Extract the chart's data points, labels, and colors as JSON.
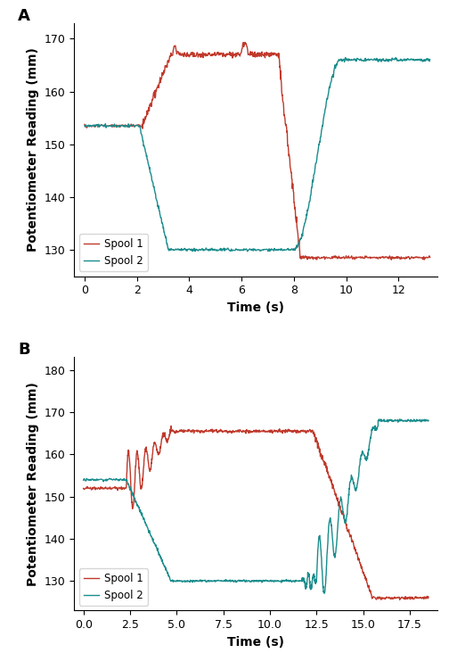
{
  "panel_A": {
    "label": "A",
    "spool1_color": "#C0392B",
    "spool2_color": "#1A8C8C",
    "ylabel": "Potentiometer Reading (mm)",
    "xlabel": "Time (s)",
    "legend_labels": [
      "Spool 1",
      "Spool 2"
    ],
    "xlim": [
      -0.4,
      13.5
    ],
    "ylim": [
      125,
      173
    ],
    "xticks": [
      0,
      2,
      4,
      6,
      8,
      10,
      12
    ],
    "yticks": [
      130,
      140,
      150,
      160,
      170
    ]
  },
  "panel_B": {
    "label": "B",
    "spool1_color": "#C0392B",
    "spool2_color": "#1A8C8C",
    "ylabel": "Potentiometer Reading (mm)",
    "xlabel": "Time (s)",
    "legend_labels": [
      "Spool 1",
      "Spool 2"
    ],
    "xlim": [
      -0.5,
      19.0
    ],
    "ylim": [
      123,
      183
    ],
    "xticks": [
      0.0,
      2.5,
      5.0,
      7.5,
      10.0,
      12.5,
      15.0,
      17.5
    ],
    "yticks": [
      130,
      140,
      150,
      160,
      170,
      180
    ]
  },
  "background_color": "#ffffff",
  "linewidth": 1.0,
  "legend_fontsize": 8.5,
  "axis_label_fontsize": 10,
  "tick_fontsize": 9,
  "panel_label_fontsize": 13
}
